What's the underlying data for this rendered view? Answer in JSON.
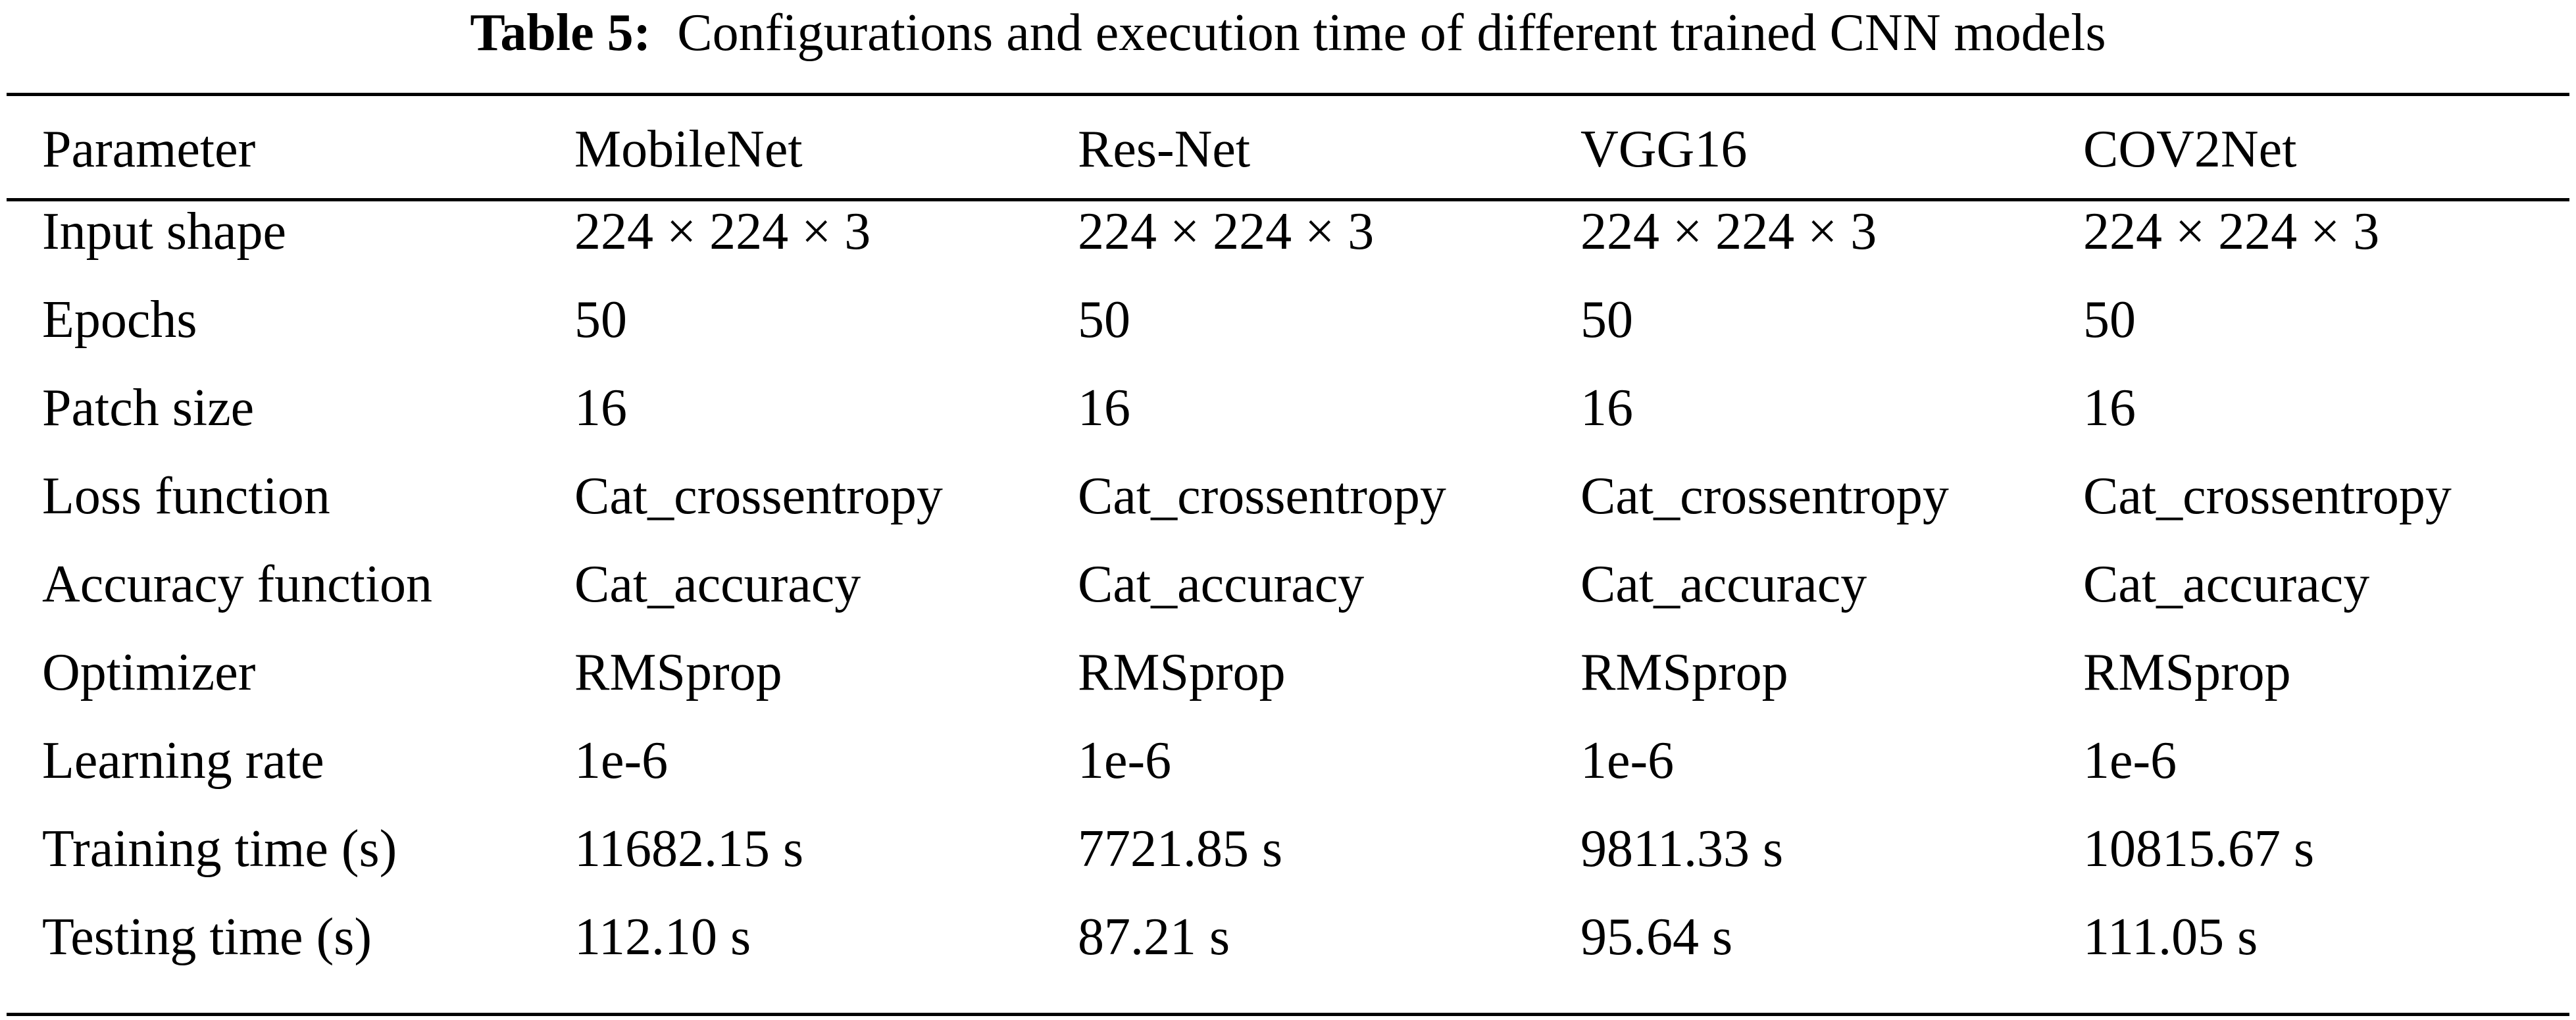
{
  "caption": {
    "label": "Table 5:",
    "text": "Configurations and execution time of different trained CNN models"
  },
  "table": {
    "headers": [
      "Parameter",
      "MobileNet",
      "Res-Net",
      "VGG16",
      "COV2Net"
    ],
    "rows": [
      [
        "Input shape",
        "224 × 224 × 3",
        "224 × 224 × 3",
        "224 × 224 × 3",
        "224 × 224 × 3"
      ],
      [
        "Epochs",
        "50",
        "50",
        "50",
        "50"
      ],
      [
        "Patch size",
        "16",
        "16",
        "16",
        "16"
      ],
      [
        "Loss function",
        "Cat_crossentropy",
        "Cat_crossentropy",
        "Cat_crossentropy",
        "Cat_crossentropy"
      ],
      [
        "Accuracy function",
        "Cat_accuracy",
        "Cat_accuracy",
        "Cat_accuracy",
        "Cat_accuracy"
      ],
      [
        "Optimizer",
        "RMSprop",
        "RMSprop",
        "RMSprop",
        "RMSprop"
      ],
      [
        "Learning rate",
        "1e-6",
        "1e-6",
        "1e-6",
        "1e-6"
      ],
      [
        "Training time (s)",
        "11682.15 s",
        "7721.85 s",
        "9811.33 s",
        "10815.67 s"
      ],
      [
        "Testing time (s)",
        "112.10 s",
        "87.21 s",
        "95.64 s",
        "111.05 s"
      ]
    ]
  }
}
